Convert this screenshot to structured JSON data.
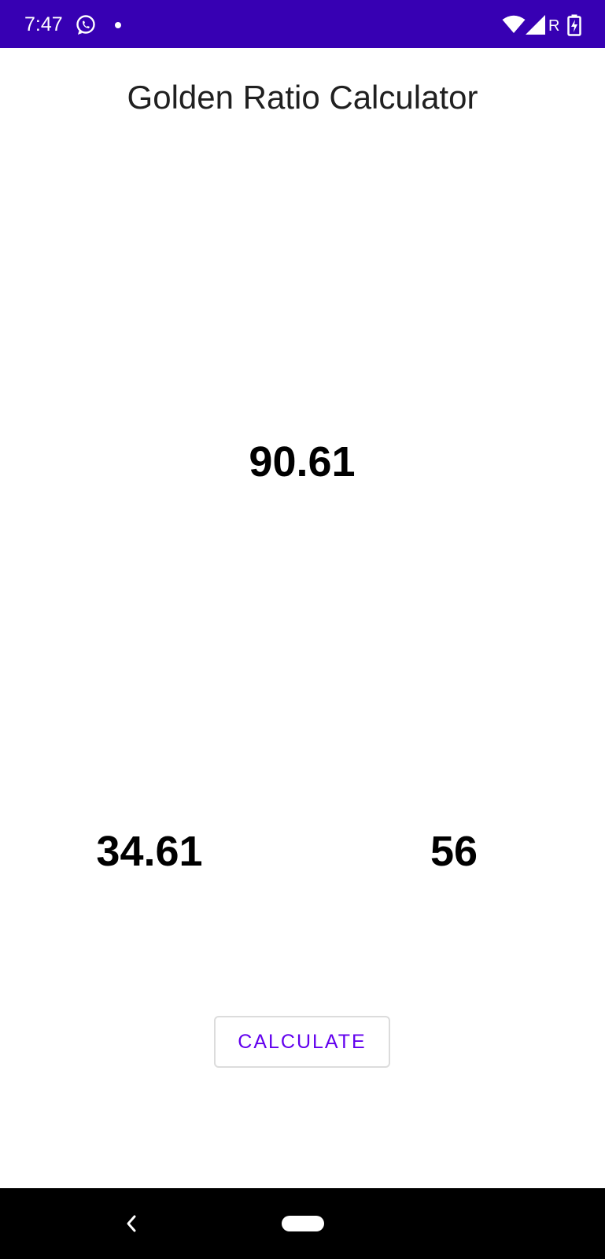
{
  "status_bar": {
    "time": "7:47",
    "carrier_letter": "R",
    "background_color": "#3700b3",
    "icons": [
      "whatsapp-icon",
      "notification-dot-icon",
      "wifi-icon",
      "signal-icon",
      "battery-charging-icon"
    ]
  },
  "app": {
    "title": "Golden Ratio Calculator"
  },
  "results": {
    "total": "90.61",
    "larger_part": "34.61",
    "smaller_part": "56"
  },
  "actions": {
    "calculate_label": "CALCULATE",
    "accent_color": "#6200ee"
  },
  "navigation": {
    "icons": [
      "back-icon",
      "home-pill-icon"
    ]
  }
}
